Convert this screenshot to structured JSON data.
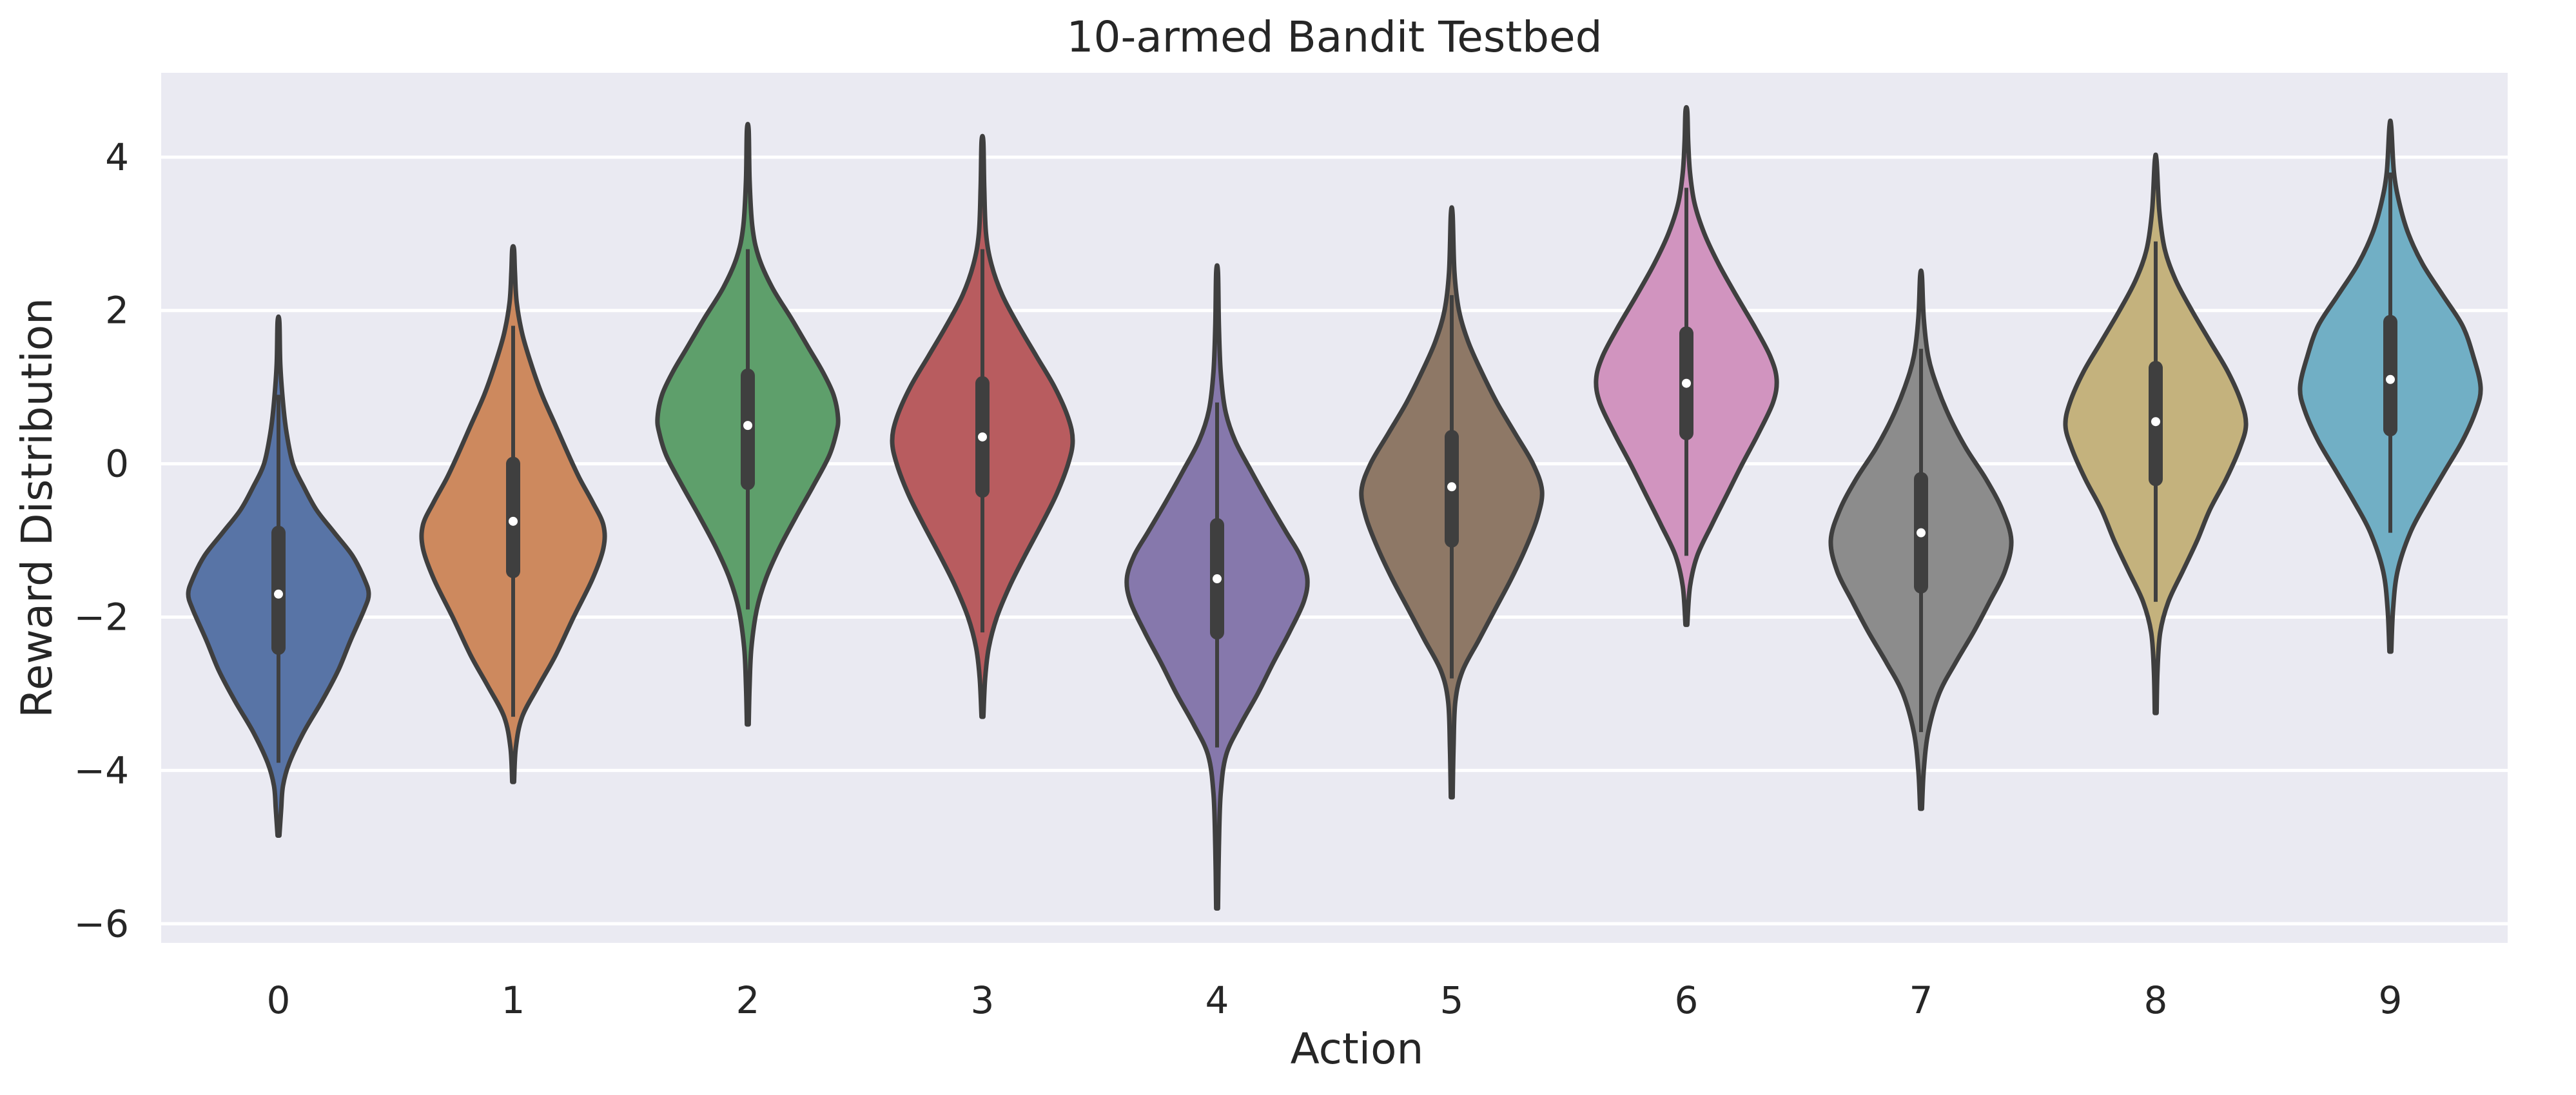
{
  "chart_data": {
    "type": "violin",
    "title": "10-armed Bandit Testbed",
    "xlabel": "Action",
    "ylabel": "Reward Distribution",
    "categories": [
      "0",
      "1",
      "2",
      "3",
      "4",
      "5",
      "6",
      "7",
      "8",
      "9"
    ],
    "yticks": [
      4,
      2,
      0,
      -2,
      -4,
      -6
    ],
    "ytick_labels": [
      "4",
      "2",
      "0",
      "−2",
      "−4",
      "−6"
    ],
    "ylim": [
      -6.25,
      5.1
    ],
    "grid": true,
    "colors": {
      "background": "#eaeaf2",
      "grid": "#ffffff",
      "outline": "#3f3f3f",
      "text": "#262626"
    },
    "series": [
      {
        "category": "0",
        "color": "#5874a6",
        "median": -1.7,
        "q1": -2.4,
        "q3": -0.9,
        "whisker_low": -3.9,
        "whisker_high": 0.9,
        "min": -4.85,
        "max": 1.85,
        "density": [
          [
            -4.85,
            0.01
          ],
          [
            -4.5,
            0.03
          ],
          [
            -4.2,
            0.05
          ],
          [
            -3.9,
            0.12
          ],
          [
            -3.5,
            0.28
          ],
          [
            -3.1,
            0.48
          ],
          [
            -2.7,
            0.66
          ],
          [
            -2.3,
            0.8
          ],
          [
            -1.9,
            0.95
          ],
          [
            -1.7,
            1.0
          ],
          [
            -1.5,
            0.95
          ],
          [
            -1.2,
            0.82
          ],
          [
            -0.9,
            0.62
          ],
          [
            -0.6,
            0.42
          ],
          [
            -0.3,
            0.28
          ],
          [
            0.0,
            0.16
          ],
          [
            0.4,
            0.09
          ],
          [
            0.8,
            0.05
          ],
          [
            1.3,
            0.02
          ],
          [
            1.85,
            0.01
          ]
        ]
      },
      {
        "category": "1",
        "color": "#cd895e",
        "median": -0.75,
        "q1": -1.4,
        "q3": 0.0,
        "whisker_low": -3.3,
        "whisker_high": 1.8,
        "min": -4.15,
        "max": 2.8,
        "density": [
          [
            -4.15,
            0.01
          ],
          [
            -3.7,
            0.03
          ],
          [
            -3.3,
            0.1
          ],
          [
            -2.9,
            0.28
          ],
          [
            -2.5,
            0.47
          ],
          [
            -2.0,
            0.67
          ],
          [
            -1.5,
            0.88
          ],
          [
            -1.1,
            1.0
          ],
          [
            -0.8,
            1.0
          ],
          [
            -0.5,
            0.88
          ],
          [
            -0.2,
            0.74
          ],
          [
            0.1,
            0.62
          ],
          [
            0.5,
            0.47
          ],
          [
            0.9,
            0.32
          ],
          [
            1.3,
            0.2
          ],
          [
            1.7,
            0.1
          ],
          [
            2.1,
            0.04
          ],
          [
            2.5,
            0.02
          ],
          [
            2.8,
            0.01
          ]
        ]
      },
      {
        "category": "2",
        "color": "#5e9f6b",
        "median": 0.5,
        "q1": -0.25,
        "q3": 1.15,
        "whisker_low": -1.9,
        "whisker_high": 2.8,
        "min": -3.4,
        "max": 4.35,
        "density": [
          [
            -3.4,
            0.01
          ],
          [
            -2.9,
            0.02
          ],
          [
            -2.4,
            0.04
          ],
          [
            -1.9,
            0.1
          ],
          [
            -1.5,
            0.2
          ],
          [
            -1.1,
            0.35
          ],
          [
            -0.7,
            0.53
          ],
          [
            -0.3,
            0.72
          ],
          [
            0.1,
            0.9
          ],
          [
            0.4,
            0.98
          ],
          [
            0.6,
            1.0
          ],
          [
            0.9,
            0.95
          ],
          [
            1.2,
            0.83
          ],
          [
            1.5,
            0.68
          ],
          [
            1.9,
            0.48
          ],
          [
            2.3,
            0.27
          ],
          [
            2.7,
            0.12
          ],
          [
            3.1,
            0.05
          ],
          [
            3.7,
            0.02
          ],
          [
            4.35,
            0.01
          ]
        ]
      },
      {
        "category": "3",
        "color": "#b85c5f",
        "median": 0.35,
        "q1": -0.35,
        "q3": 1.05,
        "whisker_low": -2.2,
        "whisker_high": 2.8,
        "min": -3.3,
        "max": 4.2,
        "density": [
          [
            -3.3,
            0.01
          ],
          [
            -2.8,
            0.03
          ],
          [
            -2.4,
            0.07
          ],
          [
            -2.0,
            0.16
          ],
          [
            -1.6,
            0.3
          ],
          [
            -1.2,
            0.47
          ],
          [
            -0.8,
            0.65
          ],
          [
            -0.4,
            0.82
          ],
          [
            0.0,
            0.95
          ],
          [
            0.3,
            1.0
          ],
          [
            0.6,
            0.95
          ],
          [
            1.0,
            0.8
          ],
          [
            1.4,
            0.6
          ],
          [
            1.8,
            0.4
          ],
          [
            2.2,
            0.22
          ],
          [
            2.6,
            0.1
          ],
          [
            3.0,
            0.04
          ],
          [
            3.6,
            0.02
          ],
          [
            4.2,
            0.01
          ]
        ]
      },
      {
        "category": "4",
        "color": "#8678ac",
        "median": -1.5,
        "q1": -2.2,
        "q3": -0.8,
        "whisker_low": -3.7,
        "whisker_high": 0.8,
        "min": -5.8,
        "max": 2.5,
        "density": [
          [
            -5.8,
            0.01
          ],
          [
            -5.0,
            0.02
          ],
          [
            -4.3,
            0.04
          ],
          [
            -3.8,
            0.1
          ],
          [
            -3.4,
            0.26
          ],
          [
            -3.0,
            0.45
          ],
          [
            -2.6,
            0.62
          ],
          [
            -2.2,
            0.8
          ],
          [
            -1.8,
            0.96
          ],
          [
            -1.5,
            1.0
          ],
          [
            -1.2,
            0.92
          ],
          [
            -0.9,
            0.77
          ],
          [
            -0.5,
            0.57
          ],
          [
            -0.1,
            0.38
          ],
          [
            0.3,
            0.2
          ],
          [
            0.7,
            0.09
          ],
          [
            1.2,
            0.04
          ],
          [
            1.8,
            0.02
          ],
          [
            2.5,
            0.01
          ]
        ]
      },
      {
        "category": "5",
        "color": "#8e7866",
        "median": -0.3,
        "q1": -1.0,
        "q3": 0.35,
        "whisker_low": -2.8,
        "whisker_high": 2.2,
        "min": -4.35,
        "max": 3.25,
        "density": [
          [
            -4.35,
            0.01
          ],
          [
            -3.7,
            0.02
          ],
          [
            -3.1,
            0.04
          ],
          [
            -2.7,
            0.12
          ],
          [
            -2.3,
            0.3
          ],
          [
            -1.9,
            0.48
          ],
          [
            -1.5,
            0.66
          ],
          [
            -1.1,
            0.82
          ],
          [
            -0.7,
            0.95
          ],
          [
            -0.35,
            1.0
          ],
          [
            0.0,
            0.9
          ],
          [
            0.4,
            0.7
          ],
          [
            0.8,
            0.5
          ],
          [
            1.2,
            0.33
          ],
          [
            1.6,
            0.18
          ],
          [
            2.0,
            0.08
          ],
          [
            2.5,
            0.03
          ],
          [
            3.25,
            0.01
          ]
        ]
      },
      {
        "category": "6",
        "color": "#d194bf",
        "median": 1.05,
        "q1": 0.4,
        "q3": 1.7,
        "whisker_low": -1.2,
        "whisker_high": 3.6,
        "min": -2.1,
        "max": 4.6,
        "density": [
          [
            -2.1,
            0.01
          ],
          [
            -1.6,
            0.04
          ],
          [
            -1.2,
            0.12
          ],
          [
            -0.8,
            0.28
          ],
          [
            -0.4,
            0.45
          ],
          [
            0.0,
            0.62
          ],
          [
            0.4,
            0.8
          ],
          [
            0.8,
            0.96
          ],
          [
            1.1,
            1.0
          ],
          [
            1.4,
            0.93
          ],
          [
            1.8,
            0.75
          ],
          [
            2.2,
            0.55
          ],
          [
            2.6,
            0.36
          ],
          [
            3.0,
            0.2
          ],
          [
            3.4,
            0.09
          ],
          [
            3.8,
            0.04
          ],
          [
            4.2,
            0.02
          ],
          [
            4.6,
            0.01
          ]
        ]
      },
      {
        "category": "7",
        "color": "#8c8c8c",
        "median": -0.9,
        "q1": -1.6,
        "q3": -0.2,
        "whisker_low": -3.5,
        "whisker_high": 1.5,
        "min": -4.5,
        "max": 2.45,
        "density": [
          [
            -4.5,
            0.01
          ],
          [
            -4.0,
            0.03
          ],
          [
            -3.5,
            0.08
          ],
          [
            -3.0,
            0.2
          ],
          [
            -2.6,
            0.38
          ],
          [
            -2.2,
            0.58
          ],
          [
            -1.8,
            0.76
          ],
          [
            -1.4,
            0.93
          ],
          [
            -1.0,
            1.0
          ],
          [
            -0.6,
            0.9
          ],
          [
            -0.2,
            0.72
          ],
          [
            0.2,
            0.5
          ],
          [
            0.6,
            0.32
          ],
          [
            1.0,
            0.18
          ],
          [
            1.4,
            0.08
          ],
          [
            1.9,
            0.03
          ],
          [
            2.45,
            0.01
          ]
        ]
      },
      {
        "category": "8",
        "color": "#c4b27d",
        "median": 0.55,
        "q1": -0.2,
        "q3": 1.25,
        "whisker_low": -1.8,
        "whisker_high": 2.9,
        "min": -3.25,
        "max": 3.95,
        "density": [
          [
            -3.25,
            0.01
          ],
          [
            -2.7,
            0.02
          ],
          [
            -2.2,
            0.05
          ],
          [
            -1.8,
            0.14
          ],
          [
            -1.4,
            0.3
          ],
          [
            -1.0,
            0.46
          ],
          [
            -0.6,
            0.6
          ],
          [
            -0.2,
            0.78
          ],
          [
            0.2,
            0.93
          ],
          [
            0.5,
            1.0
          ],
          [
            0.8,
            0.95
          ],
          [
            1.2,
            0.8
          ],
          [
            1.6,
            0.6
          ],
          [
            2.0,
            0.4
          ],
          [
            2.4,
            0.22
          ],
          [
            2.8,
            0.1
          ],
          [
            3.3,
            0.04
          ],
          [
            3.95,
            0.01
          ]
        ]
      },
      {
        "category": "9",
        "color": "#71afc5",
        "median": 1.1,
        "q1": 0.45,
        "q3": 1.85,
        "whisker_low": -0.9,
        "whisker_high": 3.8,
        "min": -2.45,
        "max": 4.4,
        "density": [
          [
            -2.45,
            0.01
          ],
          [
            -1.9,
            0.03
          ],
          [
            -1.4,
            0.08
          ],
          [
            -0.9,
            0.22
          ],
          [
            -0.5,
            0.4
          ],
          [
            -0.1,
            0.6
          ],
          [
            0.3,
            0.8
          ],
          [
            0.7,
            0.95
          ],
          [
            1.0,
            1.0
          ],
          [
            1.4,
            0.92
          ],
          [
            1.8,
            0.8
          ],
          [
            2.2,
            0.58
          ],
          [
            2.6,
            0.36
          ],
          [
            3.0,
            0.2
          ],
          [
            3.4,
            0.1
          ],
          [
            3.8,
            0.04
          ],
          [
            4.4,
            0.01
          ]
        ]
      }
    ]
  }
}
